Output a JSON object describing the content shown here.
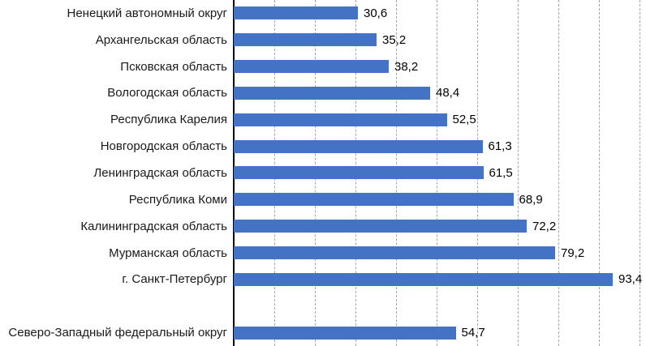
{
  "chart_data": {
    "type": "bar",
    "orientation": "horizontal",
    "title": "",
    "xlabel": "",
    "ylabel": "",
    "xlim": [
      0,
      100
    ],
    "gridline_step": 10,
    "grid": true,
    "bar_color": "#4472C4",
    "gridline_color": "#A6A6A6",
    "axis_color": "#000000",
    "categories": [
      "Ненецкий автономный округ",
      "Архангельская область",
      "Псковская область",
      "Вологодская область",
      "Республика Карелия",
      "Новгородская область",
      "Ленинградская область",
      "Республика Коми",
      "Калининградская область",
      "Мурманская область",
      "г. Санкт-Петербург",
      "Северо-Западный федеральный округ"
    ],
    "values": [
      30.6,
      35.2,
      38.2,
      48.4,
      52.5,
      61.3,
      61.5,
      68.9,
      72.2,
      79.2,
      93.4,
      54.7
    ],
    "value_labels": [
      "30,6",
      "35,2",
      "38,2",
      "48,4",
      "52,5",
      "61,3",
      "61,5",
      "68,9",
      "72,2",
      "79,2",
      "93,4",
      "54,7"
    ],
    "gap_before_index": 11
  }
}
